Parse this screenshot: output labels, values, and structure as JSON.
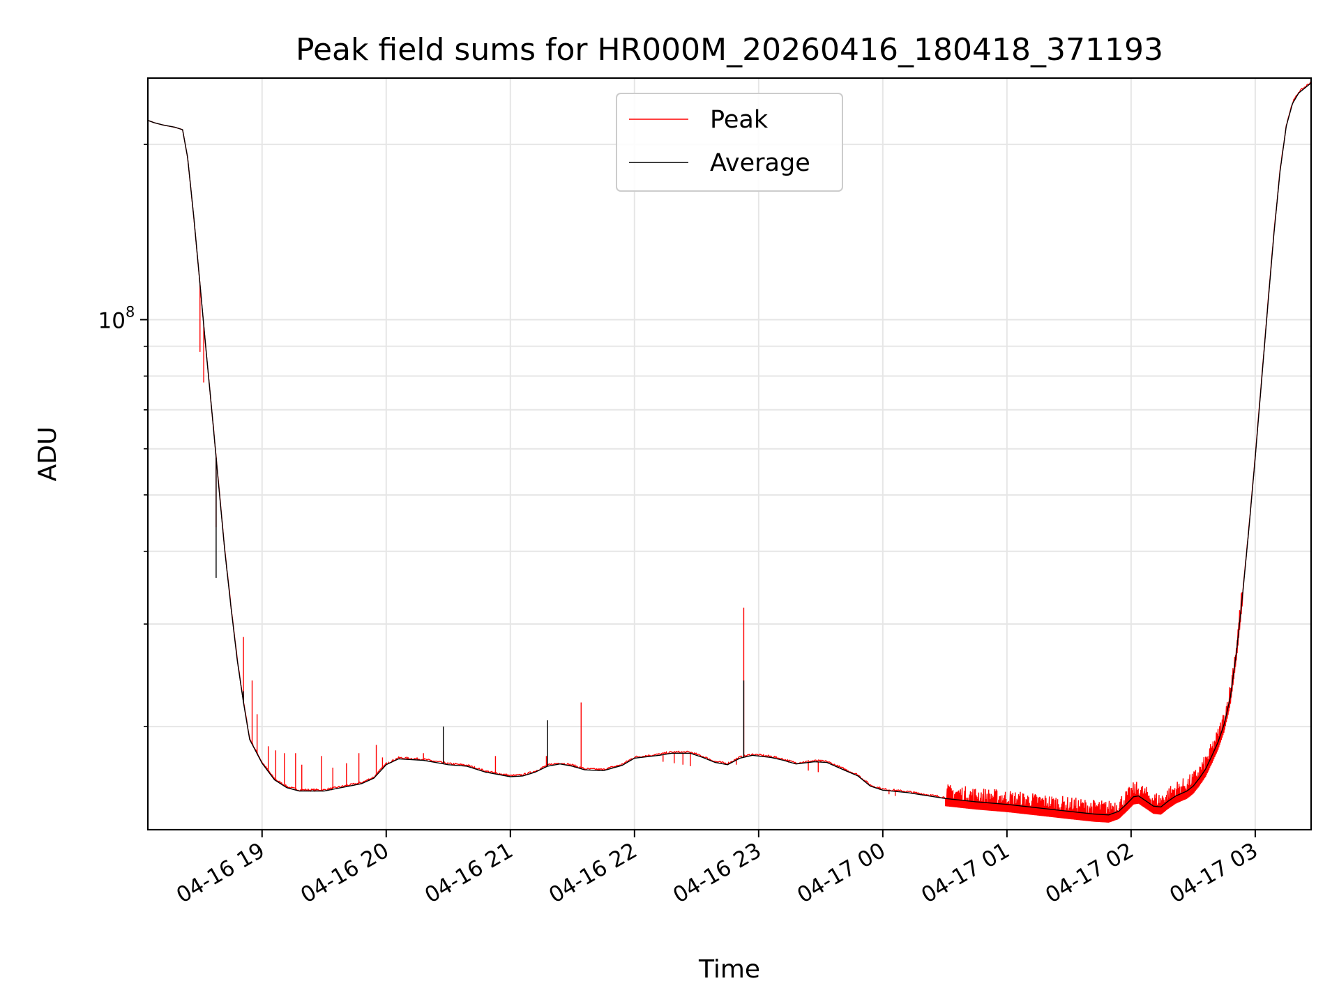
{
  "chart_data": {
    "type": "line",
    "title": "Peak field sums for HR000M_20260416_180418_371193",
    "xlabel": "Time",
    "ylabel": "ADU",
    "yscale": "log",
    "ylim": [
      13300000,
      260000000
    ],
    "xlim_hours": [
      18.08,
      27.45
    ],
    "grid": true,
    "legend_position": "upper-center",
    "x_ticks": [
      {
        "hour": 19,
        "label": "04-16 19"
      },
      {
        "hour": 20,
        "label": "04-16 20"
      },
      {
        "hour": 21,
        "label": "04-16 21"
      },
      {
        "hour": 22,
        "label": "04-16 22"
      },
      {
        "hour": 23,
        "label": "04-16 23"
      },
      {
        "hour": 24,
        "label": "04-17 00"
      },
      {
        "hour": 25,
        "label": "04-17 01"
      },
      {
        "hour": 26,
        "label": "04-17 02"
      },
      {
        "hour": 27,
        "label": "04-17 03"
      }
    ],
    "y_major_tick": {
      "value": 100000000,
      "base": "10",
      "exponent": "8"
    },
    "y_minor_ticks": [
      20000000,
      30000000,
      40000000,
      50000000,
      60000000,
      70000000,
      80000000,
      90000000,
      200000000
    ],
    "series": [
      {
        "name": "Peak",
        "color": "#ff0000",
        "spikes": [
          [
            18.5,
            88000000
          ],
          [
            18.53,
            78000000
          ],
          [
            18.63,
            44000000
          ],
          [
            18.7,
            40000000
          ],
          [
            18.85,
            28500000
          ],
          [
            18.92,
            24000000
          ],
          [
            18.96,
            21000000
          ],
          [
            19.05,
            18500000
          ],
          [
            19.11,
            18200000
          ],
          [
            19.18,
            18000000
          ],
          [
            19.27,
            18000000
          ],
          [
            19.32,
            17200000
          ],
          [
            19.48,
            17800000
          ],
          [
            19.57,
            17000000
          ],
          [
            19.68,
            17300000
          ],
          [
            19.78,
            18000000
          ],
          [
            19.92,
            18600000
          ],
          [
            19.97,
            17700000
          ],
          [
            20.02,
            17400000
          ],
          [
            20.3,
            18000000
          ],
          [
            20.46,
            18200000
          ],
          [
            20.88,
            17800000
          ],
          [
            21.29,
            17800000
          ],
          [
            21.57,
            22000000
          ],
          [
            21.78,
            17000000
          ],
          [
            22.23,
            17400000
          ],
          [
            22.32,
            17300000
          ],
          [
            22.39,
            17200000
          ],
          [
            22.45,
            17100000
          ],
          [
            22.82,
            17200000
          ],
          [
            22.88,
            32000000
          ],
          [
            23.4,
            16800000
          ],
          [
            23.48,
            16700000
          ],
          [
            24.05,
            15300000
          ],
          [
            24.1,
            15200000
          ]
        ]
      },
      {
        "name": "Average",
        "color": "#000000",
        "points": [
          [
            18.08,
            220000000
          ],
          [
            18.13,
            218000000
          ],
          [
            18.2,
            216000000
          ],
          [
            18.3,
            214000000
          ],
          [
            18.36,
            212000000
          ],
          [
            18.4,
            190000000
          ],
          [
            18.45,
            150000000
          ],
          [
            18.5,
            115000000
          ],
          [
            18.55,
            88000000
          ],
          [
            18.6,
            68000000
          ],
          [
            18.65,
            52000000
          ],
          [
            18.7,
            40000000
          ],
          [
            18.75,
            32000000
          ],
          [
            18.8,
            26000000
          ],
          [
            18.85,
            22000000
          ],
          [
            18.9,
            19000000
          ],
          [
            19.0,
            17300000
          ],
          [
            19.1,
            16200000
          ],
          [
            19.2,
            15700000
          ],
          [
            19.3,
            15500000
          ],
          [
            19.5,
            15500000
          ],
          [
            19.6,
            15650000
          ],
          [
            19.8,
            15950000
          ],
          [
            19.9,
            16300000
          ],
          [
            20.0,
            17200000
          ],
          [
            20.1,
            17600000
          ],
          [
            20.3,
            17500000
          ],
          [
            20.5,
            17200000
          ],
          [
            20.65,
            17100000
          ],
          [
            20.8,
            16700000
          ],
          [
            21.0,
            16400000
          ],
          [
            21.1,
            16450000
          ],
          [
            21.2,
            16700000
          ],
          [
            21.3,
            17100000
          ],
          [
            21.4,
            17250000
          ],
          [
            21.5,
            17100000
          ],
          [
            21.6,
            16850000
          ],
          [
            21.75,
            16800000
          ],
          [
            21.9,
            17150000
          ],
          [
            22.0,
            17650000
          ],
          [
            22.2,
            17850000
          ],
          [
            22.3,
            18000000
          ],
          [
            22.45,
            18000000
          ],
          [
            22.55,
            17700000
          ],
          [
            22.65,
            17350000
          ],
          [
            22.75,
            17200000
          ],
          [
            22.85,
            17650000
          ],
          [
            22.95,
            17850000
          ],
          [
            23.1,
            17700000
          ],
          [
            23.2,
            17500000
          ],
          [
            23.3,
            17250000
          ],
          [
            23.45,
            17400000
          ],
          [
            23.55,
            17350000
          ],
          [
            23.7,
            16800000
          ],
          [
            23.8,
            16450000
          ],
          [
            23.9,
            15800000
          ],
          [
            24.0,
            15550000
          ],
          [
            24.2,
            15400000
          ],
          [
            24.5,
            15050000
          ],
          [
            24.75,
            14850000
          ],
          [
            25.0,
            14700000
          ],
          [
            25.25,
            14500000
          ],
          [
            25.5,
            14300000
          ],
          [
            25.7,
            14150000
          ],
          [
            25.82,
            14100000
          ],
          [
            25.9,
            14300000
          ],
          [
            25.96,
            14700000
          ],
          [
            26.02,
            15150000
          ],
          [
            26.06,
            15200000
          ],
          [
            26.12,
            14900000
          ],
          [
            26.18,
            14600000
          ],
          [
            26.24,
            14550000
          ],
          [
            26.3,
            14900000
          ],
          [
            26.36,
            15200000
          ],
          [
            26.45,
            15500000
          ],
          [
            26.5,
            15800000
          ],
          [
            26.55,
            16300000
          ],
          [
            26.6,
            16900000
          ],
          [
            26.65,
            17800000
          ],
          [
            26.7,
            18800000
          ],
          [
            26.75,
            20200000
          ],
          [
            26.8,
            22500000
          ],
          [
            26.85,
            27000000
          ],
          [
            26.9,
            34000000
          ],
          [
            26.95,
            44000000
          ],
          [
            27.0,
            58000000
          ],
          [
            27.05,
            78000000
          ],
          [
            27.1,
            105000000
          ],
          [
            27.15,
            140000000
          ],
          [
            27.2,
            180000000
          ],
          [
            27.25,
            215000000
          ],
          [
            27.3,
            235000000
          ],
          [
            27.35,
            245000000
          ],
          [
            27.45,
            255000000
          ]
        ],
        "spikes": [
          [
            18.63,
            36000000
          ],
          [
            18.85,
            23000000
          ],
          [
            20.46,
            20000000
          ],
          [
            21.3,
            20500000
          ],
          [
            22.88,
            24000000
          ]
        ]
      }
    ],
    "legend": [
      "Peak",
      "Average"
    ]
  }
}
